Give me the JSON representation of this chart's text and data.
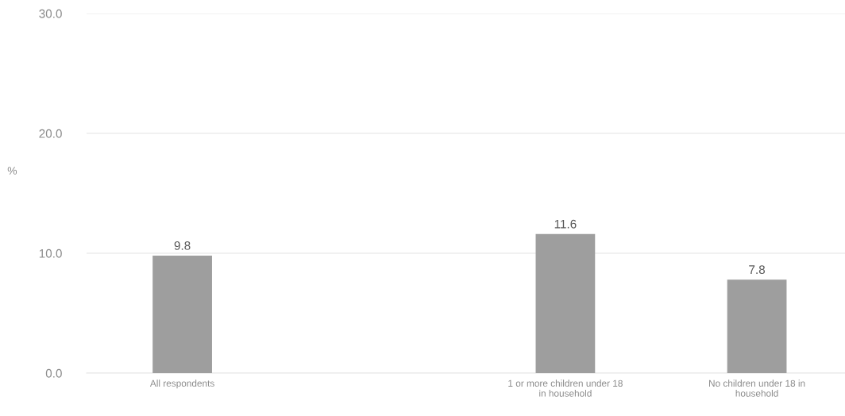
{
  "chart_data": {
    "type": "bar",
    "categories": [
      "All respondents",
      null,
      "1 or more children under 18\nin household",
      "No children under 18 in\nhousehold"
    ],
    "values": [
      9.8,
      null,
      11.6,
      7.8
    ],
    "color": "#9e9e9e",
    "ylabel": "%",
    "ylim": [
      0,
      30
    ],
    "yticks": [
      {
        "value": 0,
        "label": "0.0"
      },
      {
        "value": 10,
        "label": "10.0"
      },
      {
        "value": 20,
        "label": "20.0"
      },
      {
        "value": 30,
        "label": "30.0"
      }
    ],
    "grid": "y",
    "data_labels": true
  }
}
